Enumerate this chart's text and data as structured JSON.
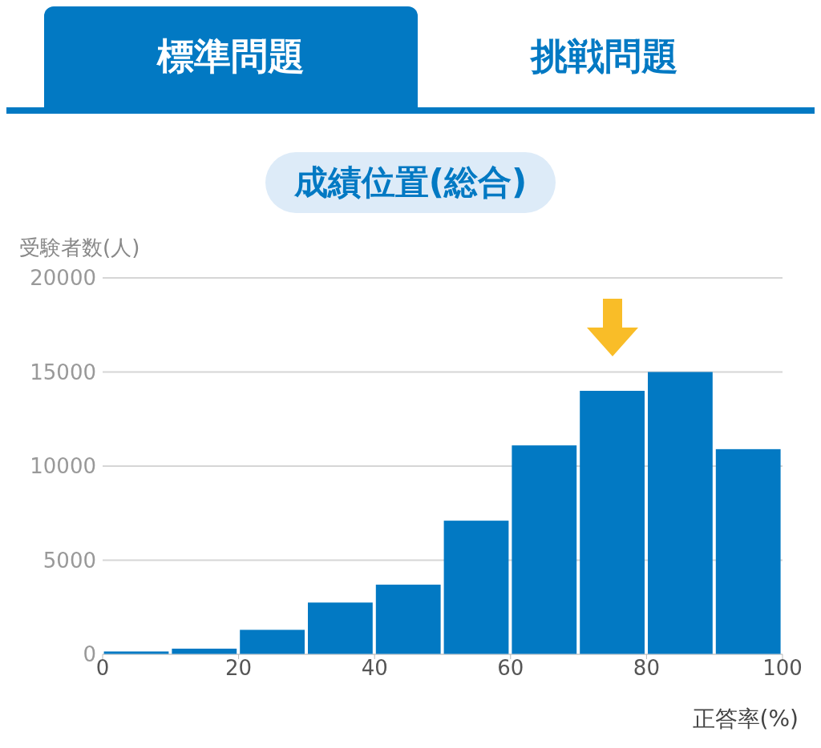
{
  "chart_data": {
    "type": "histogram",
    "title": "成績位置(総合)",
    "xlabel": "正答率(%)",
    "ylabel": "受験者数(人)",
    "annotations": [
      "標準問題",
      "挑戦問題"
    ],
    "bins": [
      0,
      10,
      20,
      30,
      40,
      50,
      60,
      70,
      80,
      90,
      100
    ],
    "values": [
      150,
      300,
      1300,
      2750,
      3700,
      7100,
      11100,
      14000,
      15000,
      10900
    ],
    "color": "#0279c3",
    "xlim": [
      0,
      100
    ],
    "xticks": [
      0,
      20,
      40,
      60,
      80,
      100
    ],
    "ylim": [
      0,
      20000
    ],
    "yticks": [
      0,
      5000,
      10000,
      15000,
      20000
    ],
    "grid": "y"
  }
}
